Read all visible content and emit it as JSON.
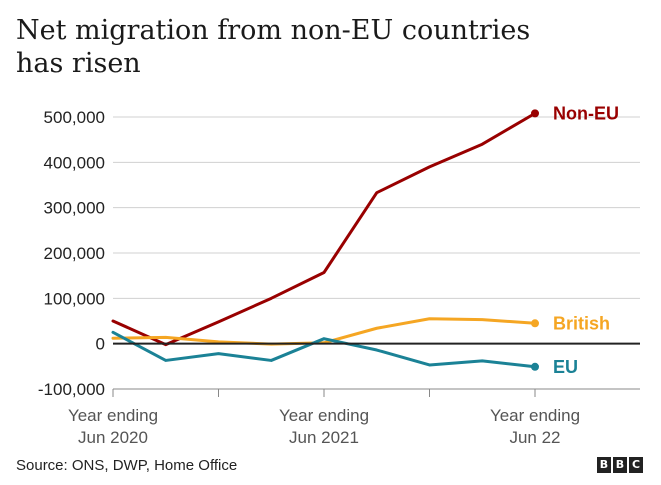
{
  "title_line1": "Net migration from non-EU countries",
  "title_line2": "has risen",
  "source": "Source: ONS, DWP, Home Office",
  "logo": [
    "B",
    "B",
    "C"
  ],
  "chart_data": {
    "type": "line",
    "ylim": [
      -100000,
      520000
    ],
    "yticks": [
      -100000,
      0,
      100000,
      200000,
      300000,
      400000,
      500000
    ],
    "ytick_labels": [
      "-100,000",
      "0",
      "100,000",
      "200,000",
      "300,000",
      "400,000",
      "500,000"
    ],
    "x": [
      0,
      1,
      2,
      3,
      4,
      5,
      6,
      7,
      8
    ],
    "xtick_positions": [
      0,
      4,
      8
    ],
    "xtick_labels": [
      [
        "Year ending",
        "Jun 2020"
      ],
      [
        "Year ending",
        "Jun 2021"
      ],
      [
        "Year ending",
        "Jun 22"
      ]
    ],
    "grid": true,
    "series": [
      {
        "name": "Non-EU",
        "color": "#990000",
        "values": [
          50000,
          -2000,
          48000,
          100000,
          157000,
          333000,
          390000,
          440000,
          508000
        ]
      },
      {
        "name": "British",
        "color": "#f5a623",
        "values": [
          12000,
          14000,
          4000,
          -1000,
          2000,
          34000,
          55000,
          53000,
          45000
        ]
      },
      {
        "name": "EU",
        "color": "#1b8296",
        "values": [
          25000,
          -37000,
          -22000,
          -37000,
          11000,
          -14000,
          -47000,
          -38000,
          -51000
        ]
      }
    ]
  }
}
